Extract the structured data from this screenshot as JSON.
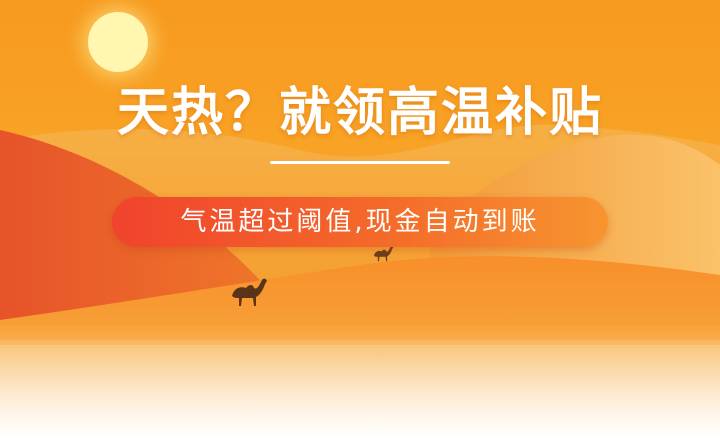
{
  "banner": {
    "headline": "天热？就领高温补贴",
    "subtitle": "气温超过阈值,现金自动到账"
  },
  "icons": [
    "sun-icon",
    "camel-icon"
  ],
  "colors": {
    "sky": "#f79a1e",
    "sun": "#fff7b0",
    "pill_start": "#f0432d",
    "pill_end": "#f79530",
    "dune_red": "#e8552a",
    "text": "#ffffff"
  }
}
